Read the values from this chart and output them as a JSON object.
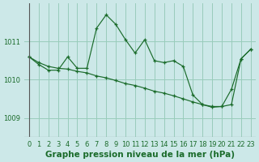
{
  "title": "Graphe pression niveau de la mer (hPa)",
  "bg_color": "#cce8e8",
  "grid_color": "#99ccbb",
  "line_color": "#1a6b2a",
  "xlim": [
    -0.5,
    23.5
  ],
  "ylim": [
    1008.5,
    1012.0
  ],
  "yticks": [
    1009,
    1010,
    1011
  ],
  "xticks": [
    0,
    1,
    2,
    3,
    4,
    5,
    6,
    7,
    8,
    9,
    10,
    11,
    12,
    13,
    14,
    15,
    16,
    17,
    18,
    19,
    20,
    21,
    22,
    23
  ],
  "series1": [
    1010.6,
    1010.4,
    1010.25,
    1010.25,
    1010.6,
    1010.3,
    1010.3,
    1011.35,
    1011.7,
    1011.45,
    1011.05,
    1010.7,
    1011.05,
    1010.5,
    1010.45,
    1010.5,
    1010.35,
    1009.6,
    1009.35,
    1009.3,
    1009.3,
    1009.75,
    1010.55,
    1010.8
  ],
  "series2": [
    1010.6,
    1010.45,
    1010.35,
    1010.3,
    1010.28,
    1010.22,
    1010.18,
    1010.1,
    1010.05,
    1009.98,
    1009.9,
    1009.85,
    1009.78,
    1009.7,
    1009.65,
    1009.58,
    1009.5,
    1009.42,
    1009.35,
    1009.28,
    1009.3,
    1009.35,
    1010.55,
    1010.8
  ],
  "tick_fontsize": 6,
  "label_fontsize": 7.5,
  "marker": "+"
}
